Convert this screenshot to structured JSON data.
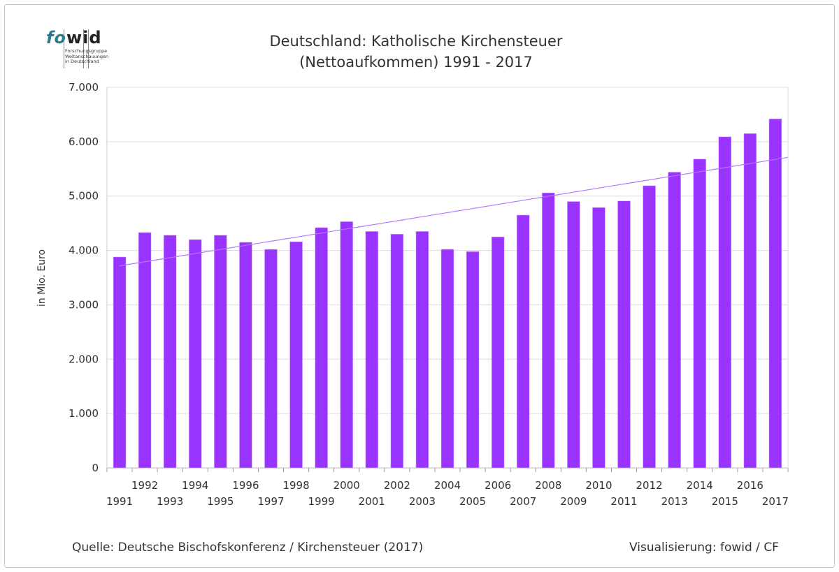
{
  "logo": {
    "part1": "fo",
    "part2": "wid",
    "subtitle_lines": [
      "Forschungsgruppe",
      "Weltanschauungen",
      "in Deutschland"
    ]
  },
  "footer": {
    "source": "Quelle: Deutsche Bischofskonferenz / Kirchensteuer (2017)",
    "credit": "Visualisierung: fowid / CF"
  },
  "chart_data": {
    "type": "bar",
    "title_lines": [
      "Deutschland: Katholische Kirchensteuer",
      "(Nettoaufkommen) 1991 - 2017"
    ],
    "xlabel": "",
    "ylabel": "in Mio. Euro",
    "ylim": [
      0,
      7000
    ],
    "yticks": [
      "0",
      "1.000",
      "2.000",
      "3.000",
      "4.000",
      "5.000",
      "6.000",
      "7.000"
    ],
    "grid": true,
    "trendline": "linear",
    "colors": {
      "bar": "#9933ff",
      "trend": "#b377ff"
    },
    "categories": [
      "1991",
      "1992",
      "1993",
      "1994",
      "1995",
      "1996",
      "1997",
      "1998",
      "1999",
      "2000",
      "2001",
      "2002",
      "2003",
      "2004",
      "2005",
      "2006",
      "2007",
      "2008",
      "2009",
      "2010",
      "2011",
      "2012",
      "2013",
      "2014",
      "2015",
      "2016",
      "2017"
    ],
    "values": [
      3880,
      4330,
      4280,
      4200,
      4280,
      4150,
      4020,
      4160,
      4420,
      4530,
      4350,
      4300,
      4350,
      4020,
      3980,
      4250,
      4650,
      5060,
      4900,
      4790,
      4910,
      5190,
      5440,
      5680,
      6090,
      6150,
      6420
    ]
  }
}
